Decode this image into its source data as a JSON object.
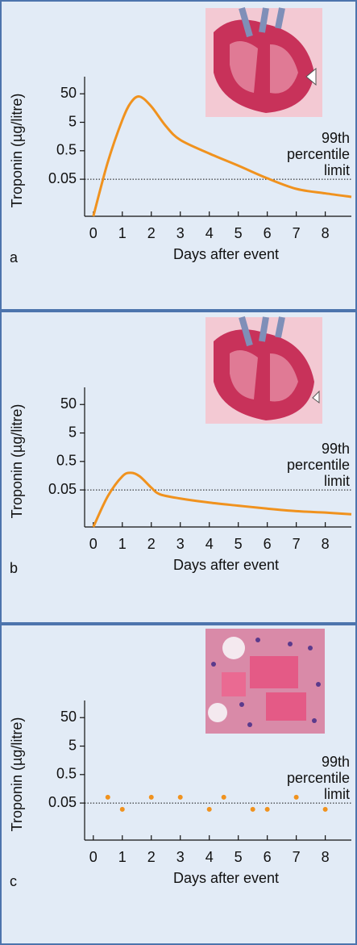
{
  "chart_data": [
    {
      "type": "line",
      "panel_label": "a",
      "y_label": "Troponin (µg/litre)",
      "x_label": "Days after event",
      "x": [
        0,
        0.5,
        1,
        1.3,
        1.6,
        2,
        2.5,
        3,
        4,
        5,
        6,
        7,
        8,
        8.9
      ],
      "values": [
        0.0025,
        0.2,
        6,
        25,
        40,
        18,
        3.7,
        1.2,
        0.4,
        0.15,
        0.054,
        0.023,
        0.016,
        0.012
      ],
      "color": "#f0921e",
      "log_scale": true,
      "xlim": [
        -0.3,
        8.9
      ],
      "xticks": [
        0,
        1,
        2,
        3,
        4,
        5,
        6,
        7,
        8
      ],
      "ylim": [
        0.0025,
        200
      ],
      "yticks": [
        0.05,
        0.5,
        5,
        50
      ],
      "threshold": {
        "value": 0.05,
        "label": [
          "99th",
          "percentile",
          "limit"
        ]
      }
    },
    {
      "type": "line",
      "panel_label": "b",
      "y_label": "Troponin (µg/litre)",
      "x_label": "Days after event",
      "x": [
        0,
        0.5,
        1,
        1.3,
        1.6,
        2,
        2.3,
        3,
        4,
        5,
        6,
        7,
        8,
        8.9
      ],
      "values": [
        0.0025,
        0.03,
        0.15,
        0.2,
        0.15,
        0.06,
        0.035,
        0.025,
        0.018,
        0.014,
        0.011,
        0.009,
        0.008,
        0.007
      ],
      "color": "#f0921e",
      "log_scale": true,
      "xlim": [
        -0.3,
        8.9
      ],
      "xticks": [
        0,
        1,
        2,
        3,
        4,
        5,
        6,
        7,
        8
      ],
      "ylim": [
        0.0025,
        200
      ],
      "yticks": [
        0.05,
        0.5,
        5,
        50
      ],
      "threshold": {
        "value": 0.05,
        "label": [
          "99th",
          "percentile",
          "limit"
        ]
      }
    },
    {
      "type": "scatter",
      "panel_label": "c",
      "y_label": "Troponin (µg/litre)",
      "x_label": "Days after event",
      "x": [
        0.5,
        1,
        2,
        3,
        4,
        4.5,
        5.5,
        6,
        7,
        8
      ],
      "values": [
        0.08,
        0.03,
        0.08,
        0.08,
        0.03,
        0.08,
        0.03,
        0.03,
        0.08,
        0.03
      ],
      "color": "#f0921e",
      "log_scale": true,
      "xlim": [
        -0.3,
        8.9
      ],
      "xticks": [
        0,
        1,
        2,
        3,
        4,
        5,
        6,
        7,
        8
      ],
      "ylim": [
        0.0025,
        200
      ],
      "yticks": [
        0.05,
        0.5,
        5,
        50
      ],
      "threshold": {
        "value": 0.05,
        "label": [
          "99th",
          "percentile",
          "limit"
        ]
      }
    }
  ]
}
